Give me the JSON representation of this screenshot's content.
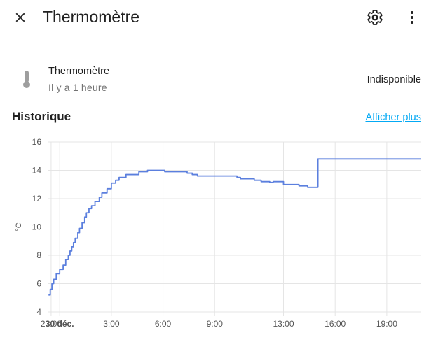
{
  "header": {
    "title": "Thermomètre",
    "close_icon": "close-icon",
    "settings_icon": "gear-icon",
    "more_icon": "more-vertical-icon"
  },
  "entity": {
    "name": "Thermomètre",
    "last_changed": "Il y a 1 heure",
    "state": "Indisponible",
    "icon": "thermometer-icon"
  },
  "history": {
    "title": "Historique",
    "more_link": "Afficher plus"
  },
  "colors": {
    "line": "#5b7fde",
    "link": "#03a9f4",
    "grid": "#e5e5e5",
    "icon_muted": "#9e9e9e"
  },
  "chart_data": {
    "type": "line",
    "ylabel": "°C",
    "ylim": [
      4,
      16
    ],
    "yticks": [
      4,
      6,
      8,
      10,
      12,
      14,
      16
    ],
    "xlim": [
      23.3,
      45.0
    ],
    "xticks": [
      {
        "x": 23.5,
        "label": "23:00",
        "bold": false
      },
      {
        "x": 24.0,
        "label": "30 déc.",
        "bold": true
      },
      {
        "x": 27.0,
        "label": "3:00",
        "bold": false
      },
      {
        "x": 30.0,
        "label": "6:00",
        "bold": false
      },
      {
        "x": 33.0,
        "label": "9:00",
        "bold": false
      },
      {
        "x": 37.0,
        "label": "13:00",
        "bold": false
      },
      {
        "x": 40.0,
        "label": "16:00",
        "bold": false
      },
      {
        "x": 43.0,
        "label": "19:00",
        "bold": false
      }
    ],
    "series": [
      {
        "step": true,
        "points": [
          [
            23.35,
            5.2
          ],
          [
            23.45,
            5.6
          ],
          [
            23.55,
            6.0
          ],
          [
            23.65,
            6.3
          ],
          [
            23.8,
            6.7
          ],
          [
            24.0,
            7.0
          ],
          [
            24.2,
            7.3
          ],
          [
            24.35,
            7.7
          ],
          [
            24.5,
            8.0
          ],
          [
            24.6,
            8.3
          ],
          [
            24.7,
            8.6
          ],
          [
            24.8,
            8.9
          ],
          [
            24.9,
            9.2
          ],
          [
            25.05,
            9.6
          ],
          [
            25.15,
            9.9
          ],
          [
            25.3,
            10.3
          ],
          [
            25.45,
            10.7
          ],
          [
            25.55,
            11.0
          ],
          [
            25.7,
            11.3
          ],
          [
            25.85,
            11.5
          ],
          [
            26.05,
            11.8
          ],
          [
            26.3,
            12.1
          ],
          [
            26.45,
            12.4
          ],
          [
            26.75,
            12.7
          ],
          [
            27.0,
            13.1
          ],
          [
            27.25,
            13.3
          ],
          [
            27.45,
            13.5
          ],
          [
            27.85,
            13.7
          ],
          [
            28.6,
            13.9
          ],
          [
            29.1,
            14.0
          ],
          [
            30.1,
            13.9
          ],
          [
            31.4,
            13.8
          ],
          [
            31.7,
            13.7
          ],
          [
            32.0,
            13.6
          ],
          [
            32.5,
            13.6
          ],
          [
            34.3,
            13.5
          ],
          [
            34.5,
            13.4
          ],
          [
            35.3,
            13.3
          ],
          [
            35.7,
            13.2
          ],
          [
            36.2,
            13.15
          ],
          [
            36.4,
            13.2
          ],
          [
            37.0,
            13.0
          ],
          [
            37.9,
            12.9
          ],
          [
            38.4,
            12.8
          ],
          [
            38.8,
            12.8
          ],
          [
            39.0,
            14.8
          ],
          [
            45.0,
            14.8
          ]
        ]
      }
    ],
    "grid": true
  }
}
